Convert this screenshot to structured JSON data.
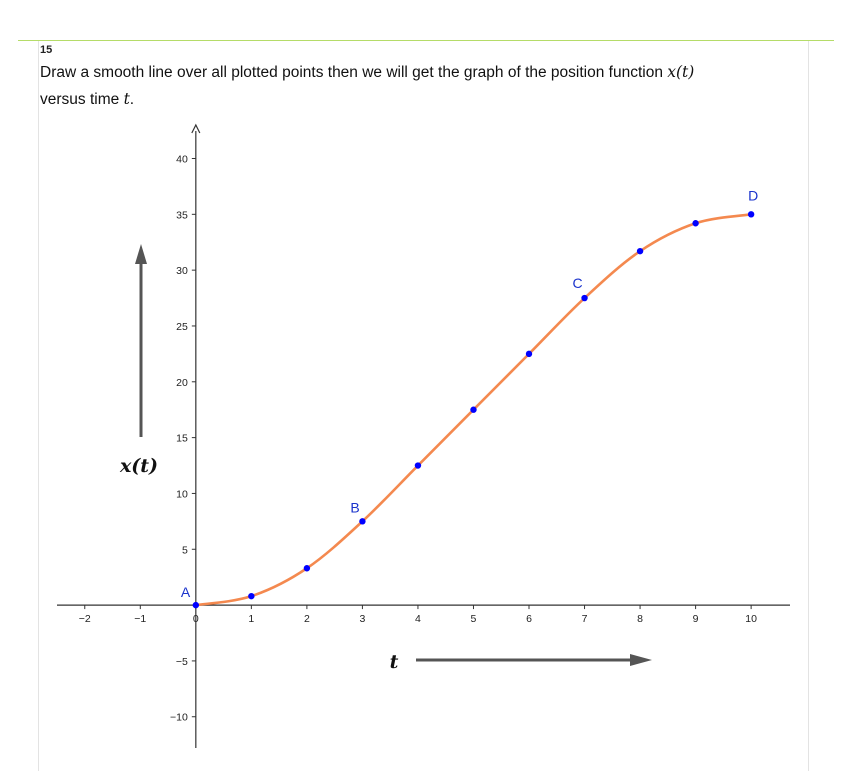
{
  "question": {
    "number": "15",
    "text_part1": "Draw a smooth line over all plotted points then we will get the graph of the position function ",
    "math_xt": "x(t)",
    "text_part2": "versus time ",
    "math_t": "t",
    "text_end": "."
  },
  "colors": {
    "curve": "#f4894f",
    "points": "#0000ff",
    "labels": "#1a33cc",
    "axes": "#333333",
    "arrows": "#555555",
    "rule": "#b5dc69"
  },
  "chart_data": {
    "type": "line",
    "x_ticks": [
      -2,
      -1,
      0,
      1,
      2,
      3,
      4,
      5,
      6,
      7,
      8,
      9,
      10
    ],
    "y_ticks": [
      -10,
      -5,
      5,
      10,
      15,
      20,
      25,
      30,
      35,
      40
    ],
    "xlim": [
      -2.5,
      10.7
    ],
    "ylim": [
      -12.8,
      43
    ],
    "grid": false,
    "series": [
      {
        "x": [
          0,
          1,
          2,
          3,
          4,
          5,
          6,
          7,
          8,
          9,
          10
        ],
        "y": [
          0,
          0.8,
          3.3,
          7.5,
          12.5,
          17.5,
          22.5,
          27.5,
          31.7,
          34.2,
          35
        ],
        "markers": true
      }
    ],
    "point_labels": [
      {
        "text": "A",
        "x": 0,
        "y": 0
      },
      {
        "text": "B",
        "x": 3,
        "y": 7.5
      },
      {
        "text": "C",
        "x": 7,
        "y": 27.5
      },
      {
        "text": "D",
        "x": 10,
        "y": 35
      }
    ],
    "annotations": {
      "y_arrow_label": "x(t)",
      "x_arrow_label": "t"
    }
  }
}
